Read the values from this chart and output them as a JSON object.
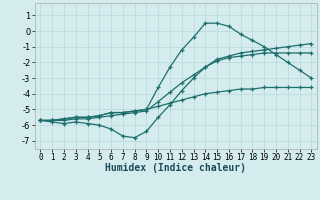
{
  "xlabel": "Humidex (Indice chaleur)",
  "background_color": "#d4ecee",
  "grid_color": "#b8d8da",
  "line_color": "#1e6e6e",
  "xlim": [
    -0.5,
    23.5
  ],
  "ylim": [
    -7.5,
    1.8
  ],
  "yticks": [
    1,
    0,
    -1,
    -2,
    -3,
    -4,
    -5,
    -6,
    -7
  ],
  "xticks": [
    0,
    1,
    2,
    3,
    4,
    5,
    6,
    7,
    8,
    9,
    10,
    11,
    12,
    13,
    14,
    15,
    16,
    17,
    18,
    19,
    20,
    21,
    22,
    23
  ],
  "lines": [
    [
      [
        -5.7,
        -5.7,
        -5.6,
        -5.5,
        -5.5,
        -5.4,
        -5.2,
        -5.2,
        -5.1,
        -5.0,
        -4.8,
        -4.6,
        -4.4,
        -4.2,
        -4.0,
        -3.9,
        -3.8,
        -3.7,
        -3.7,
        -3.6,
        -3.6,
        -3.6,
        -3.6,
        -3.6
      ]
    ],
    [
      [
        -5.7,
        -5.8,
        -5.9,
        -5.8,
        -5.9,
        -6.0,
        -6.25,
        -6.7,
        -6.8,
        -6.4,
        -5.5,
        -4.7,
        -3.8,
        -3.0,
        -2.3,
        -1.8,
        -1.6,
        -1.4,
        -1.3,
        -1.2,
        -1.1,
        -1.0,
        -0.9,
        -0.8
      ]
    ],
    [
      [
        -5.7,
        -5.7,
        -5.6,
        -5.5,
        -5.5,
        -5.4,
        -5.2,
        -5.2,
        -5.1,
        -5.0,
        -3.6,
        -2.3,
        -1.2,
        -0.4,
        0.5,
        0.5,
        0.3,
        -0.2,
        -0.6,
        -1.0,
        -1.5,
        -2.0,
        -2.5,
        -3.0
      ]
    ],
    [
      [
        -5.7,
        -5.7,
        -5.7,
        -5.6,
        -5.6,
        -5.5,
        -5.4,
        -5.3,
        -5.2,
        -5.1,
        -4.5,
        -3.9,
        -3.3,
        -2.8,
        -2.3,
        -1.9,
        -1.7,
        -1.6,
        -1.5,
        -1.4,
        -1.4,
        -1.4,
        -1.4,
        -1.4
      ]
    ]
  ]
}
